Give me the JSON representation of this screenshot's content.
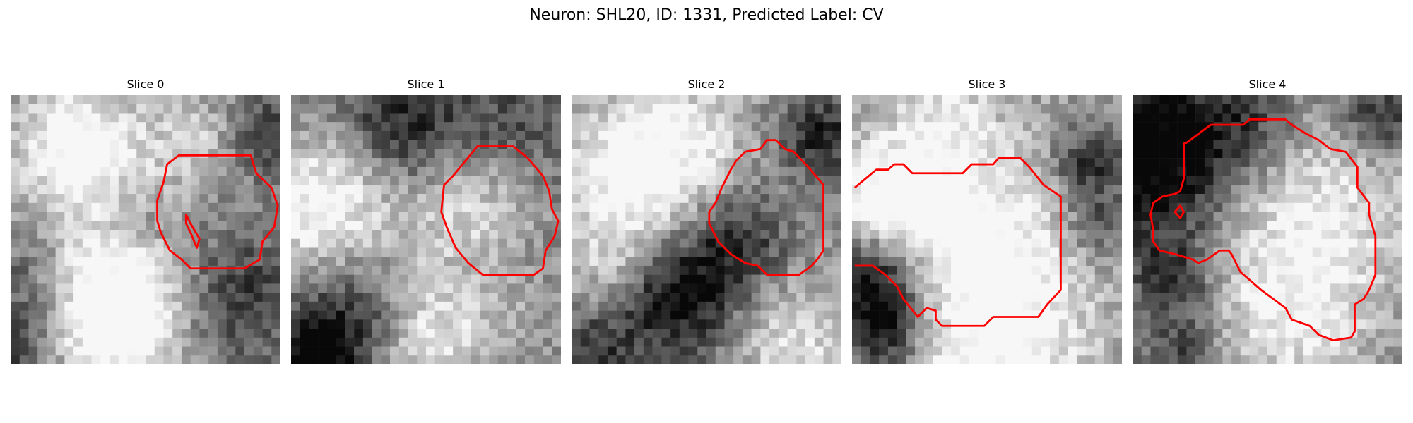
{
  "figure": {
    "title": "Neuron: SHL20, ID: 1331, Predicted Label: CV",
    "contour_color": "#ff0000"
  },
  "panels": [
    {
      "title": "Slice 0"
    },
    {
      "title": "Slice 1"
    },
    {
      "title": "Slice 2"
    },
    {
      "title": "Slice 3"
    },
    {
      "title": "Slice 4"
    }
  ]
}
